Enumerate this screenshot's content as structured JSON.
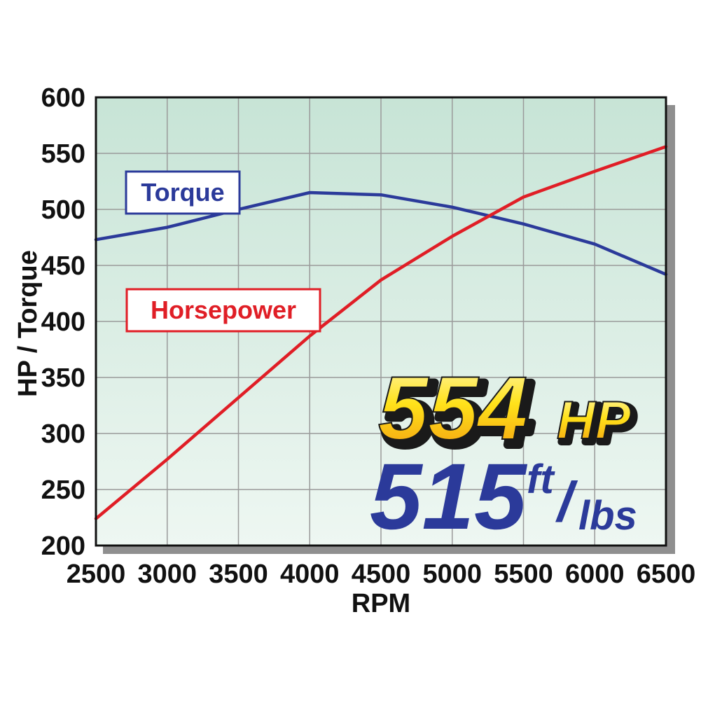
{
  "chart_data": {
    "type": "line",
    "xlabel": "RPM",
    "ylabel": "HP / Torque",
    "xlim": [
      2500,
      6500
    ],
    "ylim": [
      200,
      600
    ],
    "x_ticks": [
      "2500",
      "3000",
      "3500",
      "4000",
      "4500",
      "5000",
      "5500",
      "6000",
      "6500"
    ],
    "y_ticks": [
      "200",
      "250",
      "300",
      "350",
      "400",
      "450",
      "500",
      "550",
      "600"
    ],
    "grid": true,
    "x": [
      2500,
      3000,
      3500,
      4000,
      4500,
      5000,
      5500,
      6000,
      6500
    ],
    "series": [
      {
        "name": "Torque",
        "color": "#2b3a9a",
        "values": [
          473,
          484,
          500,
          515,
          513,
          502,
          487,
          469,
          442
        ]
      },
      {
        "name": "Horsepower",
        "color": "#e01e26",
        "values": [
          224,
          277,
          332,
          387,
          437,
          476,
          511,
          534,
          556
        ]
      }
    ]
  },
  "headline": {
    "hp_value": "554",
    "hp_unit": "HP",
    "torque_value": "515",
    "torque_unit_top": "ft",
    "torque_unit_slash": "/",
    "torque_unit_bottom": "lbs"
  },
  "colors": {
    "plot_bg_top": "#c7e4d6",
    "plot_bg_bottom": "#eef7f2",
    "grid": "#9a9a9a",
    "hp_text": "#ffd21a",
    "torque_text": "#2b3a9a"
  }
}
